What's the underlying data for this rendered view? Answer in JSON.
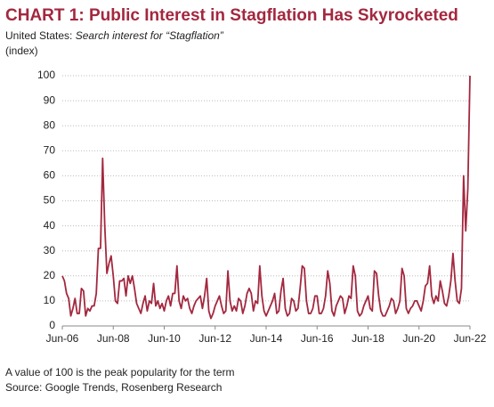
{
  "chart_data": {
    "type": "line",
    "title": "CHART 1: Public Interest in Stagflation Has Skyrocketed",
    "subtitle": [
      "United States:",
      "Search interest for “Stagflation”"
    ],
    "y_label": "(index)",
    "notes": [
      "A value of 100 is the peak popularity for the term",
      "Source: Google Trends, Rosenberg Research"
    ],
    "categories": [
      "Jun-06",
      null,
      null,
      null,
      null,
      null,
      null,
      null,
      null,
      null,
      null,
      null,
      null,
      null,
      null,
      null,
      null,
      null,
      null,
      null,
      null,
      null,
      null,
      null,
      "Jun-08",
      null,
      null,
      null,
      null,
      null,
      null,
      null,
      null,
      null,
      null,
      null,
      null,
      null,
      null,
      null,
      null,
      null,
      null,
      null,
      null,
      null,
      null,
      null,
      "Jun-10",
      null,
      null,
      null,
      null,
      null,
      null,
      null,
      null,
      null,
      null,
      null,
      null,
      null,
      null,
      null,
      null,
      null,
      null,
      null,
      null,
      null,
      null,
      null,
      "Jun-12",
      null,
      null,
      null,
      null,
      null,
      null,
      null,
      null,
      null,
      null,
      null,
      null,
      null,
      null,
      null,
      null,
      null,
      null,
      null,
      null,
      null,
      null,
      null,
      "Jun-14",
      null,
      null,
      null,
      null,
      null,
      null,
      null,
      null,
      null,
      null,
      null,
      null,
      null,
      null,
      null,
      null,
      null,
      null,
      null,
      null,
      null,
      null,
      null,
      "Jun-16",
      null,
      null,
      null,
      null,
      null,
      null,
      null,
      null,
      null,
      null,
      null,
      null,
      null,
      null,
      null,
      null,
      null,
      null,
      null,
      null,
      null,
      null,
      null,
      "Jun-18",
      null,
      null,
      null,
      null,
      null,
      null,
      null,
      null,
      null,
      null,
      null,
      null,
      null,
      null,
      null,
      null,
      null,
      null,
      null,
      null,
      null,
      null,
      null,
      "Jun-20",
      null,
      null,
      null,
      null,
      null,
      null,
      null,
      null,
      null,
      null,
      null,
      null,
      null,
      null,
      null,
      null,
      null,
      null,
      null,
      null,
      null,
      null,
      null,
      "Jun-22"
    ],
    "series": [
      {
        "name": "Search interest",
        "color": "#a3283f",
        "values": [
          20,
          18,
          13,
          11,
          4,
          7,
          11,
          5,
          5,
          15,
          14,
          4,
          7,
          6,
          8,
          8,
          13,
          31,
          31,
          67,
          40,
          21,
          25,
          28,
          20,
          10,
          9,
          18,
          18,
          19,
          12,
          20,
          17,
          20,
          15,
          9,
          7,
          5,
          9,
          12,
          6,
          10,
          9,
          17,
          8,
          10,
          7,
          9,
          6,
          10,
          12,
          8,
          13,
          13,
          24,
          10,
          7,
          12,
          10,
          11,
          7,
          5,
          8,
          10,
          11,
          12,
          7,
          12,
          19,
          6,
          3,
          5,
          8,
          10,
          12,
          8,
          5,
          6,
          22,
          10,
          6,
          8,
          6,
          11,
          10,
          5,
          8,
          13,
          15,
          13,
          6,
          10,
          9,
          24,
          12,
          6,
          4,
          6,
          8,
          10,
          13,
          5,
          6,
          14,
          19,
          7,
          4,
          5,
          11,
          10,
          6,
          7,
          15,
          24,
          23,
          10,
          5,
          5,
          7,
          12,
          12,
          5,
          5,
          7,
          12,
          22,
          17,
          6,
          4,
          8,
          10,
          12,
          11,
          5,
          8,
          12,
          11,
          24,
          20,
          6,
          4,
          5,
          8,
          10,
          12,
          7,
          6,
          22,
          21,
          12,
          6,
          4,
          4,
          6,
          8,
          11,
          10,
          5,
          7,
          10,
          23,
          20,
          7,
          5,
          7,
          8,
          10,
          10,
          8,
          6,
          10,
          16,
          17,
          24,
          12,
          9,
          12,
          10,
          18,
          14,
          9,
          8,
          12,
          18,
          29,
          18,
          10,
          9,
          15,
          60,
          38,
          55,
          100
        ]
      }
    ],
    "ylim": [
      0,
      100
    ],
    "yticks": [
      0,
      10,
      20,
      30,
      40,
      50,
      60,
      70,
      80,
      90,
      100
    ],
    "grid": true
  }
}
